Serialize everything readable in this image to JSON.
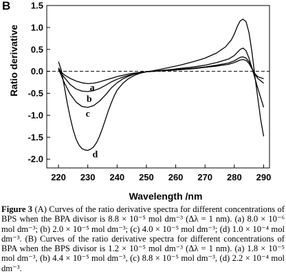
{
  "panel_label": "B",
  "caption": {
    "figure_number": "Figure 3",
    "text": " (A) Curves of the ratio derivative spectra for different concentrations of BPS when the BPA divisor is 8.8 × 10⁻⁵ mol dm⁻³ (Δλ = 1 nm). (a) 8.0 × 10⁻⁶ mol dm⁻³; (b) 2.0 × 10⁻⁵ mol dm⁻³; (c) 4.0 × 10⁻⁵ mol dm⁻³; (d) 1.0 × 10⁻⁴ mol dm⁻³. (B) Curves of the ratio derivative spectra for different concentrations of BPA when the BPS divisor is 1.2 × 10⁻⁵ mol dm⁻³ (Δλ = 1 nm). (a) 1.8 × 10⁻⁵ mol dm⁻³, (b) 4.4 × 10⁻⁵ mol dm⁻³, (c) 8.8 × 10⁻⁵ mol dm⁻³, (d) 2.2 × 10⁻⁴ mol dm⁻³."
  },
  "chart_data": {
    "type": "line",
    "xlabel": "Wavelength /nm",
    "ylabel": "Ratio derivative",
    "xlim": [
      216,
      292
    ],
    "ylim": [
      -2.2,
      1.5
    ],
    "xticks": [
      220,
      230,
      240,
      250,
      260,
      270,
      280,
      290
    ],
    "yticks": [
      -2.0,
      -1.5,
      -1.0,
      -0.5,
      0.0,
      0.5,
      1.0,
      1.5
    ],
    "ytick_labels": [
      "-2.0",
      "-1.5",
      "-1.0",
      "-0.5",
      "0.0",
      "0.5",
      "1.0",
      "1.5"
    ],
    "reference_line_y": 0.0,
    "line_color": "#000000",
    "series": [
      {
        "name": "a",
        "label_at": [
          231.5,
          -0.36
        ],
        "points": [
          [
            220,
            0.08
          ],
          [
            221,
            -0.02
          ],
          [
            222,
            -0.08
          ],
          [
            224,
            -0.16
          ],
          [
            226,
            -0.22
          ],
          [
            228,
            -0.26
          ],
          [
            230,
            -0.28
          ],
          [
            232,
            -0.27
          ],
          [
            234,
            -0.24
          ],
          [
            236,
            -0.2
          ],
          [
            238,
            -0.16
          ],
          [
            240,
            -0.12
          ],
          [
            242,
            -0.09
          ],
          [
            244,
            -0.06
          ],
          [
            246,
            -0.04
          ],
          [
            248,
            -0.02
          ],
          [
            250,
            -0.01
          ],
          [
            252,
            0.0
          ],
          [
            255,
            0.01
          ],
          [
            258,
            0.02
          ],
          [
            262,
            0.04
          ],
          [
            266,
            0.06
          ],
          [
            270,
            0.09
          ],
          [
            274,
            0.12
          ],
          [
            278,
            0.16
          ],
          [
            280,
            0.2
          ],
          [
            281,
            0.23
          ],
          [
            282,
            0.26
          ],
          [
            283,
            0.27
          ],
          [
            284,
            0.25
          ],
          [
            285,
            0.18
          ],
          [
            286,
            0.06
          ],
          [
            287,
            -0.05
          ],
          [
            288,
            -0.12
          ],
          [
            290,
            -0.17
          ]
        ]
      },
      {
        "name": "b",
        "label_at": [
          230.5,
          -0.62
        ],
        "points": [
          [
            220,
            0.06
          ],
          [
            221,
            -0.05
          ],
          [
            222,
            -0.14
          ],
          [
            224,
            -0.3
          ],
          [
            226,
            -0.4
          ],
          [
            228,
            -0.45
          ],
          [
            230,
            -0.46
          ],
          [
            232,
            -0.44
          ],
          [
            234,
            -0.39
          ],
          [
            236,
            -0.32
          ],
          [
            238,
            -0.24
          ],
          [
            240,
            -0.18
          ],
          [
            242,
            -0.13
          ],
          [
            244,
            -0.09
          ],
          [
            246,
            -0.06
          ],
          [
            248,
            -0.03
          ],
          [
            250,
            -0.01
          ],
          [
            252,
            0.0
          ],
          [
            255,
            0.01
          ],
          [
            258,
            0.03
          ],
          [
            262,
            0.05
          ],
          [
            266,
            0.07
          ],
          [
            270,
            0.1
          ],
          [
            274,
            0.14
          ],
          [
            278,
            0.19
          ],
          [
            280,
            0.24
          ],
          [
            281,
            0.28
          ],
          [
            282,
            0.32
          ],
          [
            283,
            0.33
          ],
          [
            284,
            0.3
          ],
          [
            285,
            0.22
          ],
          [
            286,
            0.08
          ],
          [
            287,
            -0.06
          ],
          [
            288,
            -0.16
          ],
          [
            290,
            -0.27
          ]
        ]
      },
      {
        "name": "c",
        "label_at": [
          230.0,
          -0.95
        ],
        "points": [
          [
            220,
            0.05
          ],
          [
            221,
            -0.1
          ],
          [
            222,
            -0.26
          ],
          [
            224,
            -0.52
          ],
          [
            226,
            -0.7
          ],
          [
            228,
            -0.8
          ],
          [
            230,
            -0.82
          ],
          [
            232,
            -0.78
          ],
          [
            234,
            -0.68
          ],
          [
            236,
            -0.54
          ],
          [
            238,
            -0.38
          ],
          [
            240,
            -0.26
          ],
          [
            242,
            -0.17
          ],
          [
            244,
            -0.11
          ],
          [
            246,
            -0.06
          ],
          [
            248,
            -0.03
          ],
          [
            250,
            -0.01
          ],
          [
            252,
            0.0
          ],
          [
            255,
            0.02
          ],
          [
            258,
            0.04
          ],
          [
            262,
            0.07
          ],
          [
            266,
            0.1
          ],
          [
            270,
            0.14
          ],
          [
            274,
            0.2
          ],
          [
            278,
            0.28
          ],
          [
            280,
            0.36
          ],
          [
            281,
            0.43
          ],
          [
            282,
            0.5
          ],
          [
            283,
            0.53
          ],
          [
            284,
            0.47
          ],
          [
            285,
            0.3
          ],
          [
            286,
            0.08
          ],
          [
            287,
            -0.15
          ],
          [
            288,
            -0.38
          ],
          [
            290,
            -0.82
          ]
        ]
      },
      {
        "name": "d",
        "label_at": [
          232.5,
          -1.88
        ],
        "points": [
          [
            220,
            0.22
          ],
          [
            221,
            0.02
          ],
          [
            222,
            -0.35
          ],
          [
            223,
            -0.72
          ],
          [
            224,
            -1.05
          ],
          [
            225,
            -1.33
          ],
          [
            226,
            -1.54
          ],
          [
            227,
            -1.68
          ],
          [
            228,
            -1.76
          ],
          [
            229,
            -1.79
          ],
          [
            230,
            -1.8
          ],
          [
            231,
            -1.77
          ],
          [
            232,
            -1.72
          ],
          [
            233,
            -1.62
          ],
          [
            234,
            -1.48
          ],
          [
            235,
            -1.3
          ],
          [
            236,
            -1.1
          ],
          [
            237,
            -0.9
          ],
          [
            238,
            -0.72
          ],
          [
            239,
            -0.56
          ],
          [
            240,
            -0.43
          ],
          [
            242,
            -0.27
          ],
          [
            244,
            -0.16
          ],
          [
            246,
            -0.09
          ],
          [
            248,
            -0.04
          ],
          [
            250,
            -0.01
          ],
          [
            252,
            0.01
          ],
          [
            255,
            0.05
          ],
          [
            258,
            0.09
          ],
          [
            262,
            0.15
          ],
          [
            266,
            0.22
          ],
          [
            270,
            0.3
          ],
          [
            274,
            0.42
          ],
          [
            277,
            0.56
          ],
          [
            279,
            0.72
          ],
          [
            280,
            0.85
          ],
          [
            281,
            1.02
          ],
          [
            282,
            1.15
          ],
          [
            283,
            1.19
          ],
          [
            284,
            1.13
          ],
          [
            285,
            0.88
          ],
          [
            286,
            0.45
          ],
          [
            287,
            -0.1
          ],
          [
            288,
            -0.6
          ],
          [
            289,
            -1.1
          ],
          [
            290,
            -1.48
          ]
        ]
      }
    ]
  }
}
